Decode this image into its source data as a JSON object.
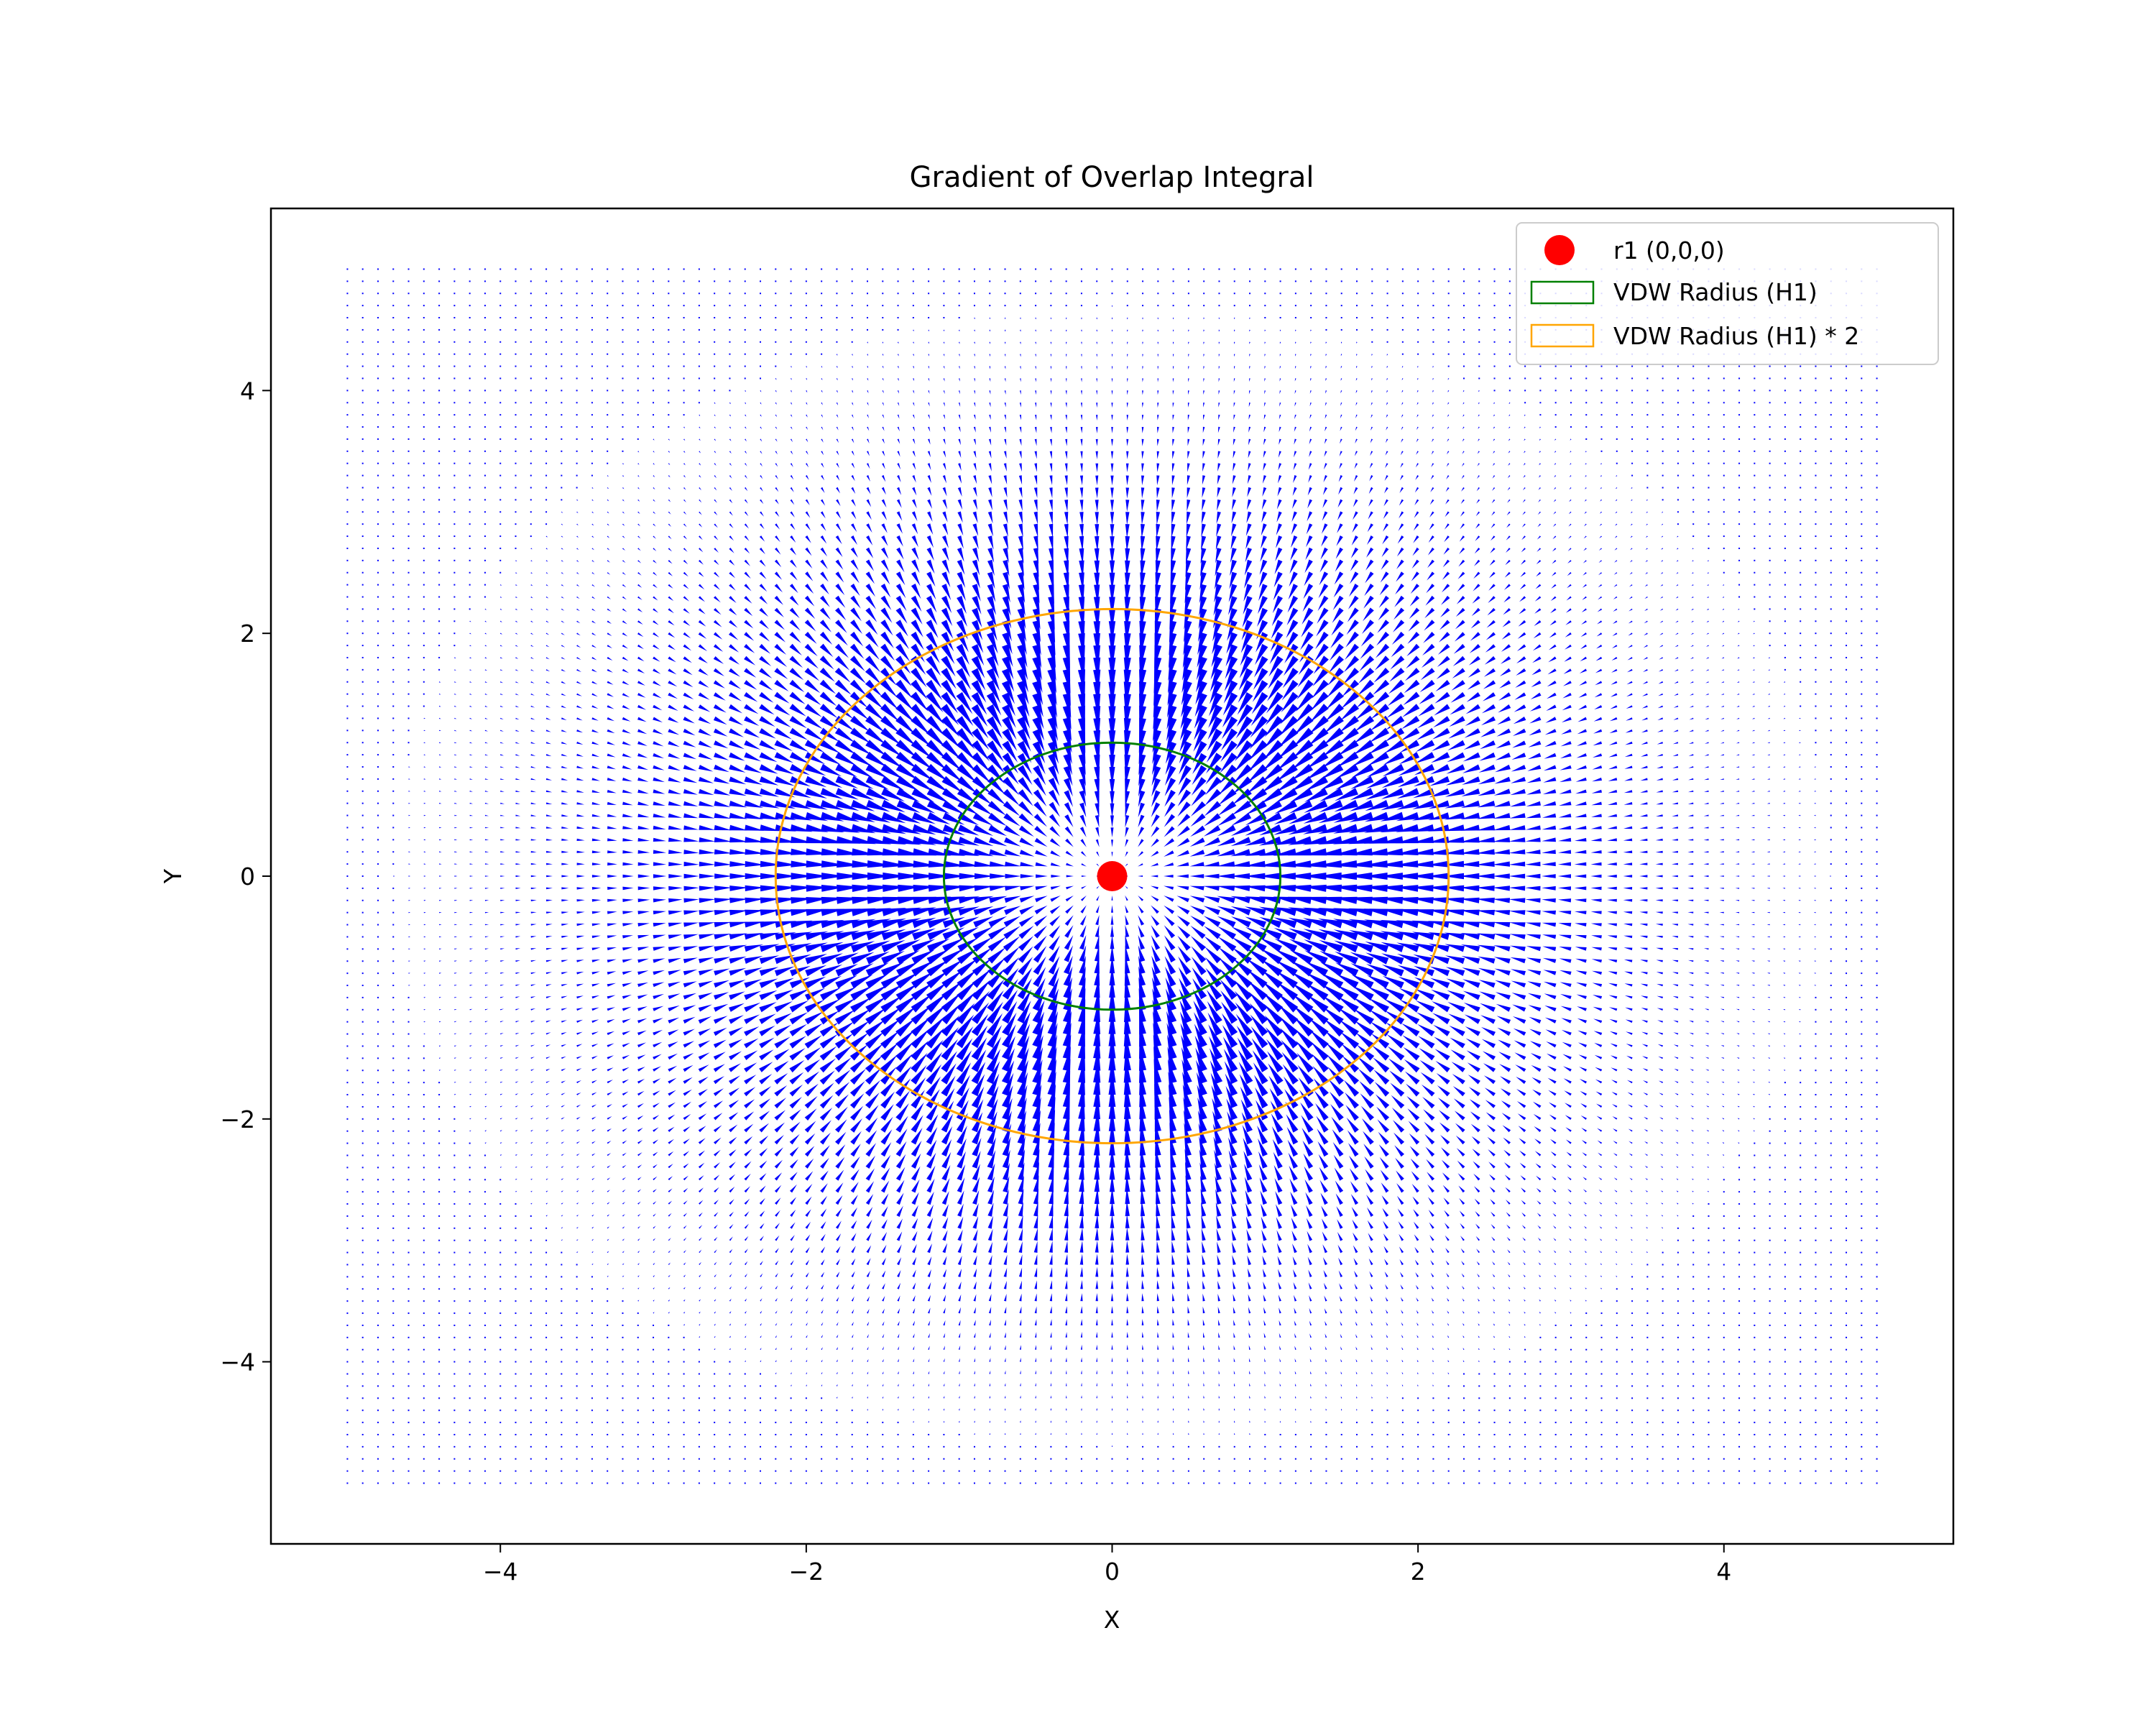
{
  "chart_data": {
    "type": "quiver",
    "title": "Gradient of Overlap Integral",
    "xlabel": "X",
    "ylabel": "Y",
    "xlim": [
      -5.5,
      5.5
    ],
    "ylim": [
      -5.5,
      5.5
    ],
    "xticks": [
      -4,
      -2,
      0,
      2,
      4
    ],
    "yticks": [
      -4,
      -2,
      0,
      2,
      4
    ],
    "xtick_labels": [
      "−4",
      "−2",
      "0",
      "2",
      "4"
    ],
    "ytick_labels": [
      "−4",
      "−2",
      "0",
      "2",
      "4"
    ],
    "grid": false,
    "legend_position": "top-right",
    "field": {
      "color": "#0000ff",
      "x_range": [
        -5,
        5
      ],
      "y_range": [
        -5,
        5
      ],
      "count_per_axis": 101,
      "direction": "toward origin",
      "peak_magnitude_radius": 1.6
    },
    "series": [
      {
        "name": "r1 (0,0,0)",
        "kind": "point",
        "x": 0,
        "y": 0,
        "color": "#ff0000"
      },
      {
        "name": "VDW Radius (H1)",
        "kind": "circle",
        "cx": 0,
        "cy": 0,
        "r": 1.1,
        "color": "#008000"
      },
      {
        "name": "VDW Radius (H1) * 2",
        "kind": "circle",
        "cx": 0,
        "cy": 0,
        "r": 2.2,
        "color": "#ffa500"
      }
    ]
  }
}
